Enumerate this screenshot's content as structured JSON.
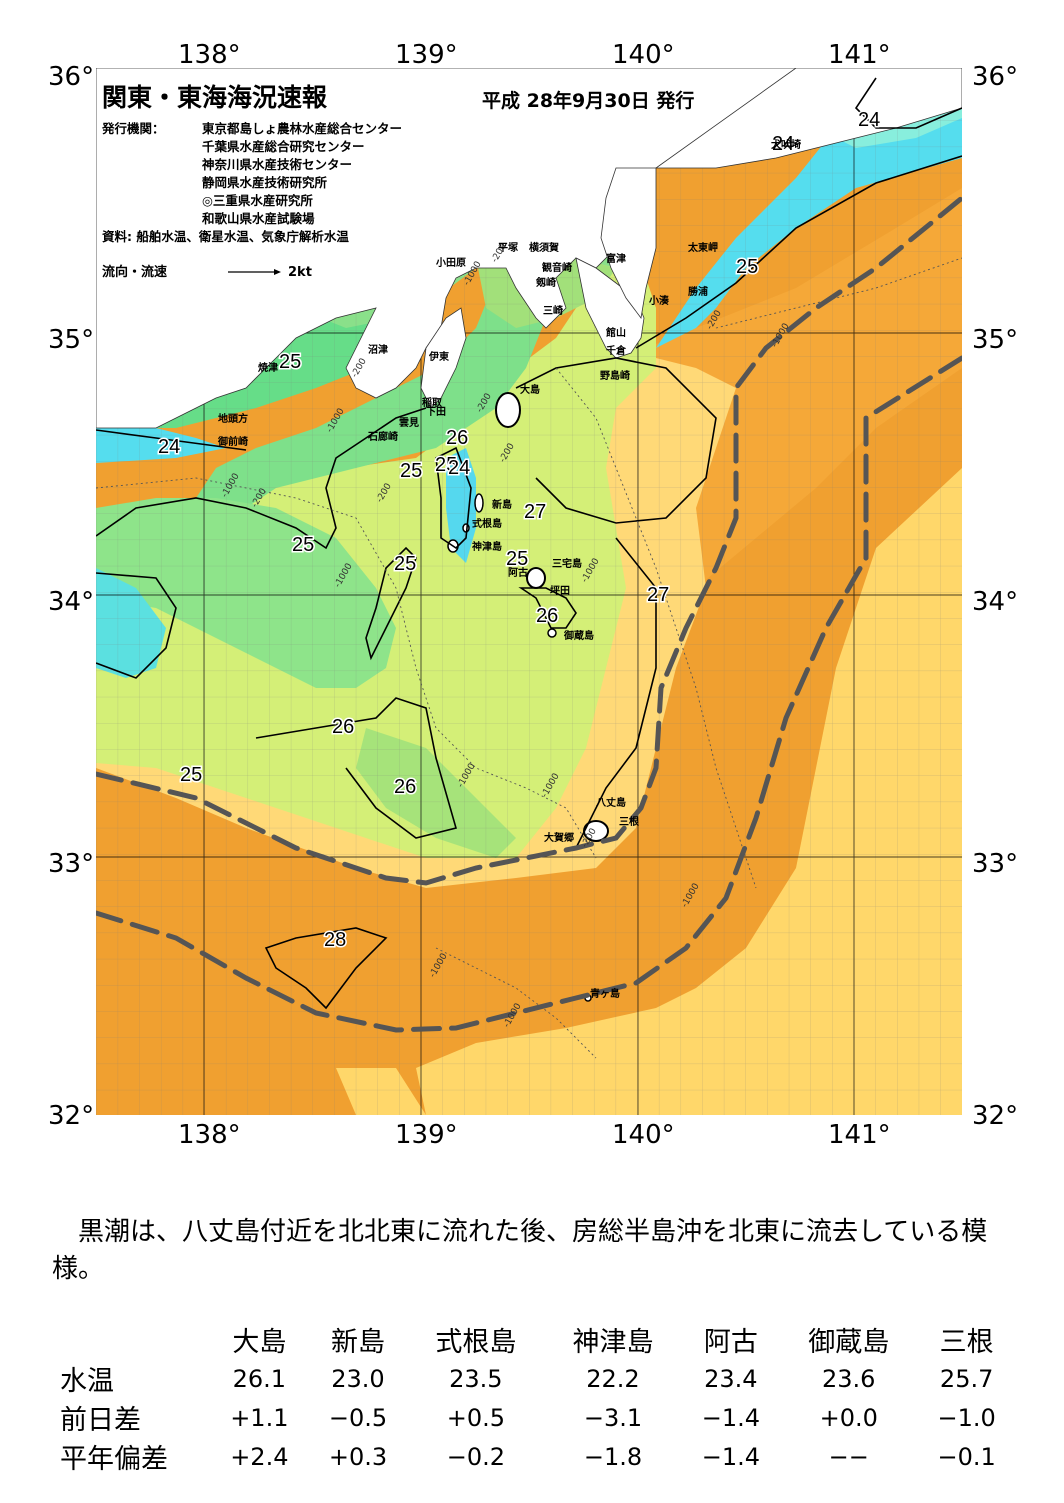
{
  "map": {
    "title": "関東・東海海況速報",
    "date": "平成 28年9月30日 発行",
    "issuer_label": "発行機関：",
    "issuers": [
      "東京都島しょ農林水産総合センター",
      "千葉県水産総合研究センター",
      "神奈川県水産技術センター",
      "静岡県水産技術研究所",
      "◎三重県水産研究所",
      "和歌山県水産試験場"
    ],
    "source": "資料: 船舶水温、衛星水温、気象庁解析水温",
    "flow_legend_label": "流向・流速",
    "flow_legend_value": "2kt",
    "lon_labels": [
      "138°",
      "139°",
      "140°",
      "141°"
    ],
    "lat_labels": [
      "36°",
      "35°",
      "34°",
      "33°",
      "32°"
    ],
    "place_names": [
      "小田原",
      "平塚",
      "横須賀",
      "観音崎",
      "剱崎",
      "三崎",
      "富津",
      "館山",
      "千倉",
      "野島崎",
      "太東岬",
      "勝浦",
      "小湊",
      "沼津",
      "伊東",
      "焼津",
      "稲取",
      "下田",
      "雲見",
      "石廊崎",
      "地頭方",
      "御前崎",
      "大島",
      "新島",
      "式根島",
      "神津島",
      "三宅島",
      "阿古",
      "坪田",
      "御蔵島",
      "八丈島",
      "大賀郷",
      "三根",
      "青ヶ島",
      "犬吠埼"
    ],
    "isotherm_labels": [
      "24",
      "24",
      "24",
      "25",
      "25",
      "25",
      "25",
      "25",
      "25",
      "25",
      "26",
      "26",
      "26",
      "26",
      "27",
      "27",
      "28",
      "24",
      "25"
    ],
    "depth_labels": [
      "-200",
      "-1000"
    ],
    "colors": {
      "t23": "#55ddee",
      "t24": "#66eedd",
      "t25": "#66dd88",
      "t25b": "#99e070",
      "t26": "#ccee77",
      "t26b": "#eeee88",
      "t27": "#ffdd77",
      "t28": "#f7b040",
      "t28b": "#f0a030",
      "land": "#ffffff",
      "kuroshio": "#555555"
    }
  },
  "commentary": "黒潮は、八丈島付近を北北東に流れた後、房総半島沖を北東に流去している模様。",
  "table": {
    "headers": [
      "大島",
      "新島",
      "式根島",
      "神津島",
      "阿古",
      "御蔵島",
      "三根"
    ],
    "rows": [
      {
        "label": "水温",
        "values": [
          "26.1",
          "23.0",
          "23.5",
          "22.2",
          "23.4",
          "23.6",
          "25.7"
        ]
      },
      {
        "label": "前日差",
        "values": [
          "+1.1",
          "−0.5",
          "+0.5",
          "−3.1",
          "−1.4",
          "+0.0",
          "−1.0"
        ]
      },
      {
        "label": "平年偏差",
        "values": [
          "+2.4",
          "+0.3",
          "−0.2",
          "−1.8",
          "−1.4",
          "−−",
          "−0.1"
        ]
      }
    ]
  }
}
